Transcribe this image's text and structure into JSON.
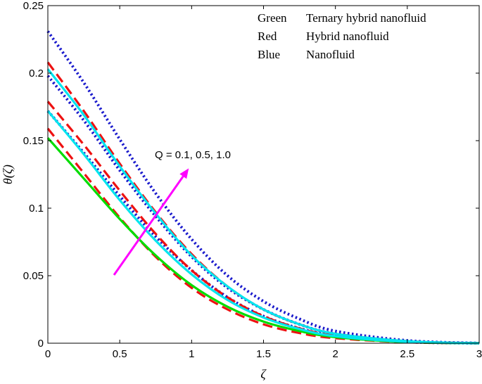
{
  "chart_data": {
    "type": "line",
    "xlabel": "ζ",
    "ylabel": "θ(ζ)",
    "xlim": [
      0,
      3
    ],
    "ylim": [
      0,
      0.25
    ],
    "xticks": [
      "0",
      "0.5",
      "1",
      "1.5",
      "2",
      "2.5",
      "3"
    ],
    "yticks": [
      "0",
      "0.05",
      "0.1",
      "0.15",
      "0.2",
      "0.25"
    ],
    "grid": false,
    "legend_position": "top-right",
    "legend": [
      {
        "key": "Green",
        "text": "Ternary hybrid nanofluid"
      },
      {
        "key": "Red",
        "text": "Hybrid nanofluid"
      },
      {
        "key": "Blue",
        "text": "Nanofluid"
      }
    ],
    "annotation": "Q = 0.1, 0.5, 1.0",
    "annotation_color": "#ff00ff",
    "colors": {
      "ternary": "#00dd00",
      "ternary_mid": "#00e5ee",
      "hybrid": "#ee1111",
      "nano": "#1a1acc",
      "arrow": "#ff00ff"
    },
    "series": [
      {
        "group": "nano",
        "dash": "dotted",
        "x": [
          0,
          0.25,
          0.5,
          0.75,
          1.0,
          1.25,
          1.5,
          1.75,
          2.0,
          2.5,
          3.0
        ],
        "y": [
          0.172,
          0.141,
          0.109,
          0.079,
          0.054,
          0.034,
          0.02,
          0.011,
          0.0055,
          0.001,
          0.0
        ]
      },
      {
        "group": "nano",
        "dash": "dotted",
        "x": [
          0,
          0.25,
          0.5,
          0.75,
          1.0,
          1.25,
          1.5,
          1.75,
          2.0,
          2.5,
          3.0
        ],
        "y": [
          0.198,
          0.165,
          0.128,
          0.094,
          0.064,
          0.041,
          0.025,
          0.014,
          0.007,
          0.0015,
          0.0
        ]
      },
      {
        "group": "nano",
        "dash": "dotted",
        "x": [
          0,
          0.25,
          0.5,
          0.75,
          1.0,
          1.25,
          1.5,
          1.75,
          2.0,
          2.5,
          3.0
        ],
        "y": [
          0.231,
          0.193,
          0.151,
          0.111,
          0.077,
          0.05,
          0.031,
          0.018,
          0.009,
          0.002,
          0.0
        ]
      },
      {
        "group": "hybrid",
        "dash": "dashed",
        "x": [
          0,
          0.25,
          0.5,
          0.75,
          1.0,
          1.25,
          1.5,
          1.75,
          2.0,
          2.5,
          3.0
        ],
        "y": [
          0.159,
          0.126,
          0.093,
          0.064,
          0.041,
          0.025,
          0.014,
          0.0075,
          0.0037,
          0.0007,
          0.0
        ]
      },
      {
        "group": "hybrid",
        "dash": "dashed",
        "x": [
          0,
          0.25,
          0.5,
          0.75,
          1.0,
          1.25,
          1.5,
          1.75,
          2.0,
          2.5,
          3.0
        ],
        "y": [
          0.179,
          0.147,
          0.113,
          0.081,
          0.054,
          0.034,
          0.02,
          0.011,
          0.0055,
          0.001,
          0.0
        ]
      },
      {
        "group": "hybrid",
        "dash": "dashed",
        "x": [
          0,
          0.25,
          0.5,
          0.75,
          1.0,
          1.25,
          1.5,
          1.75,
          2.0,
          2.5,
          3.0
        ],
        "y": [
          0.208,
          0.172,
          0.133,
          0.097,
          0.066,
          0.042,
          0.025,
          0.014,
          0.007,
          0.0015,
          0.0
        ]
      },
      {
        "group": "ternary",
        "dash": "solid",
        "x": [
          0,
          0.25,
          0.5,
          0.75,
          1.0,
          1.25,
          1.5,
          1.75,
          2.0,
          2.5,
          3.0
        ],
        "y": [
          0.152,
          0.122,
          0.092,
          0.065,
          0.043,
          0.027,
          0.016,
          0.009,
          0.0045,
          0.0008,
          0.0
        ]
      },
      {
        "group": "ternary_mid",
        "dash": "solid",
        "x": [
          0,
          0.25,
          0.5,
          0.75,
          1.0,
          1.25,
          1.5,
          1.75,
          2.0,
          2.5,
          3.0
        ],
        "y": [
          0.172,
          0.14,
          0.106,
          0.076,
          0.051,
          0.032,
          0.019,
          0.0105,
          0.0052,
          0.001,
          0.0
        ]
      },
      {
        "group": "ternary_mid",
        "dash": "solid",
        "x": [
          0,
          0.25,
          0.5,
          0.75,
          1.0,
          1.25,
          1.5,
          1.75,
          2.0,
          2.5,
          3.0
        ],
        "y": [
          0.203,
          0.169,
          0.131,
          0.096,
          0.065,
          0.042,
          0.025,
          0.014,
          0.007,
          0.0015,
          0.0
        ]
      }
    ],
    "arrow": {
      "from": [
        0.46,
        0.0505
      ],
      "to": [
        0.98,
        0.1295
      ]
    }
  }
}
